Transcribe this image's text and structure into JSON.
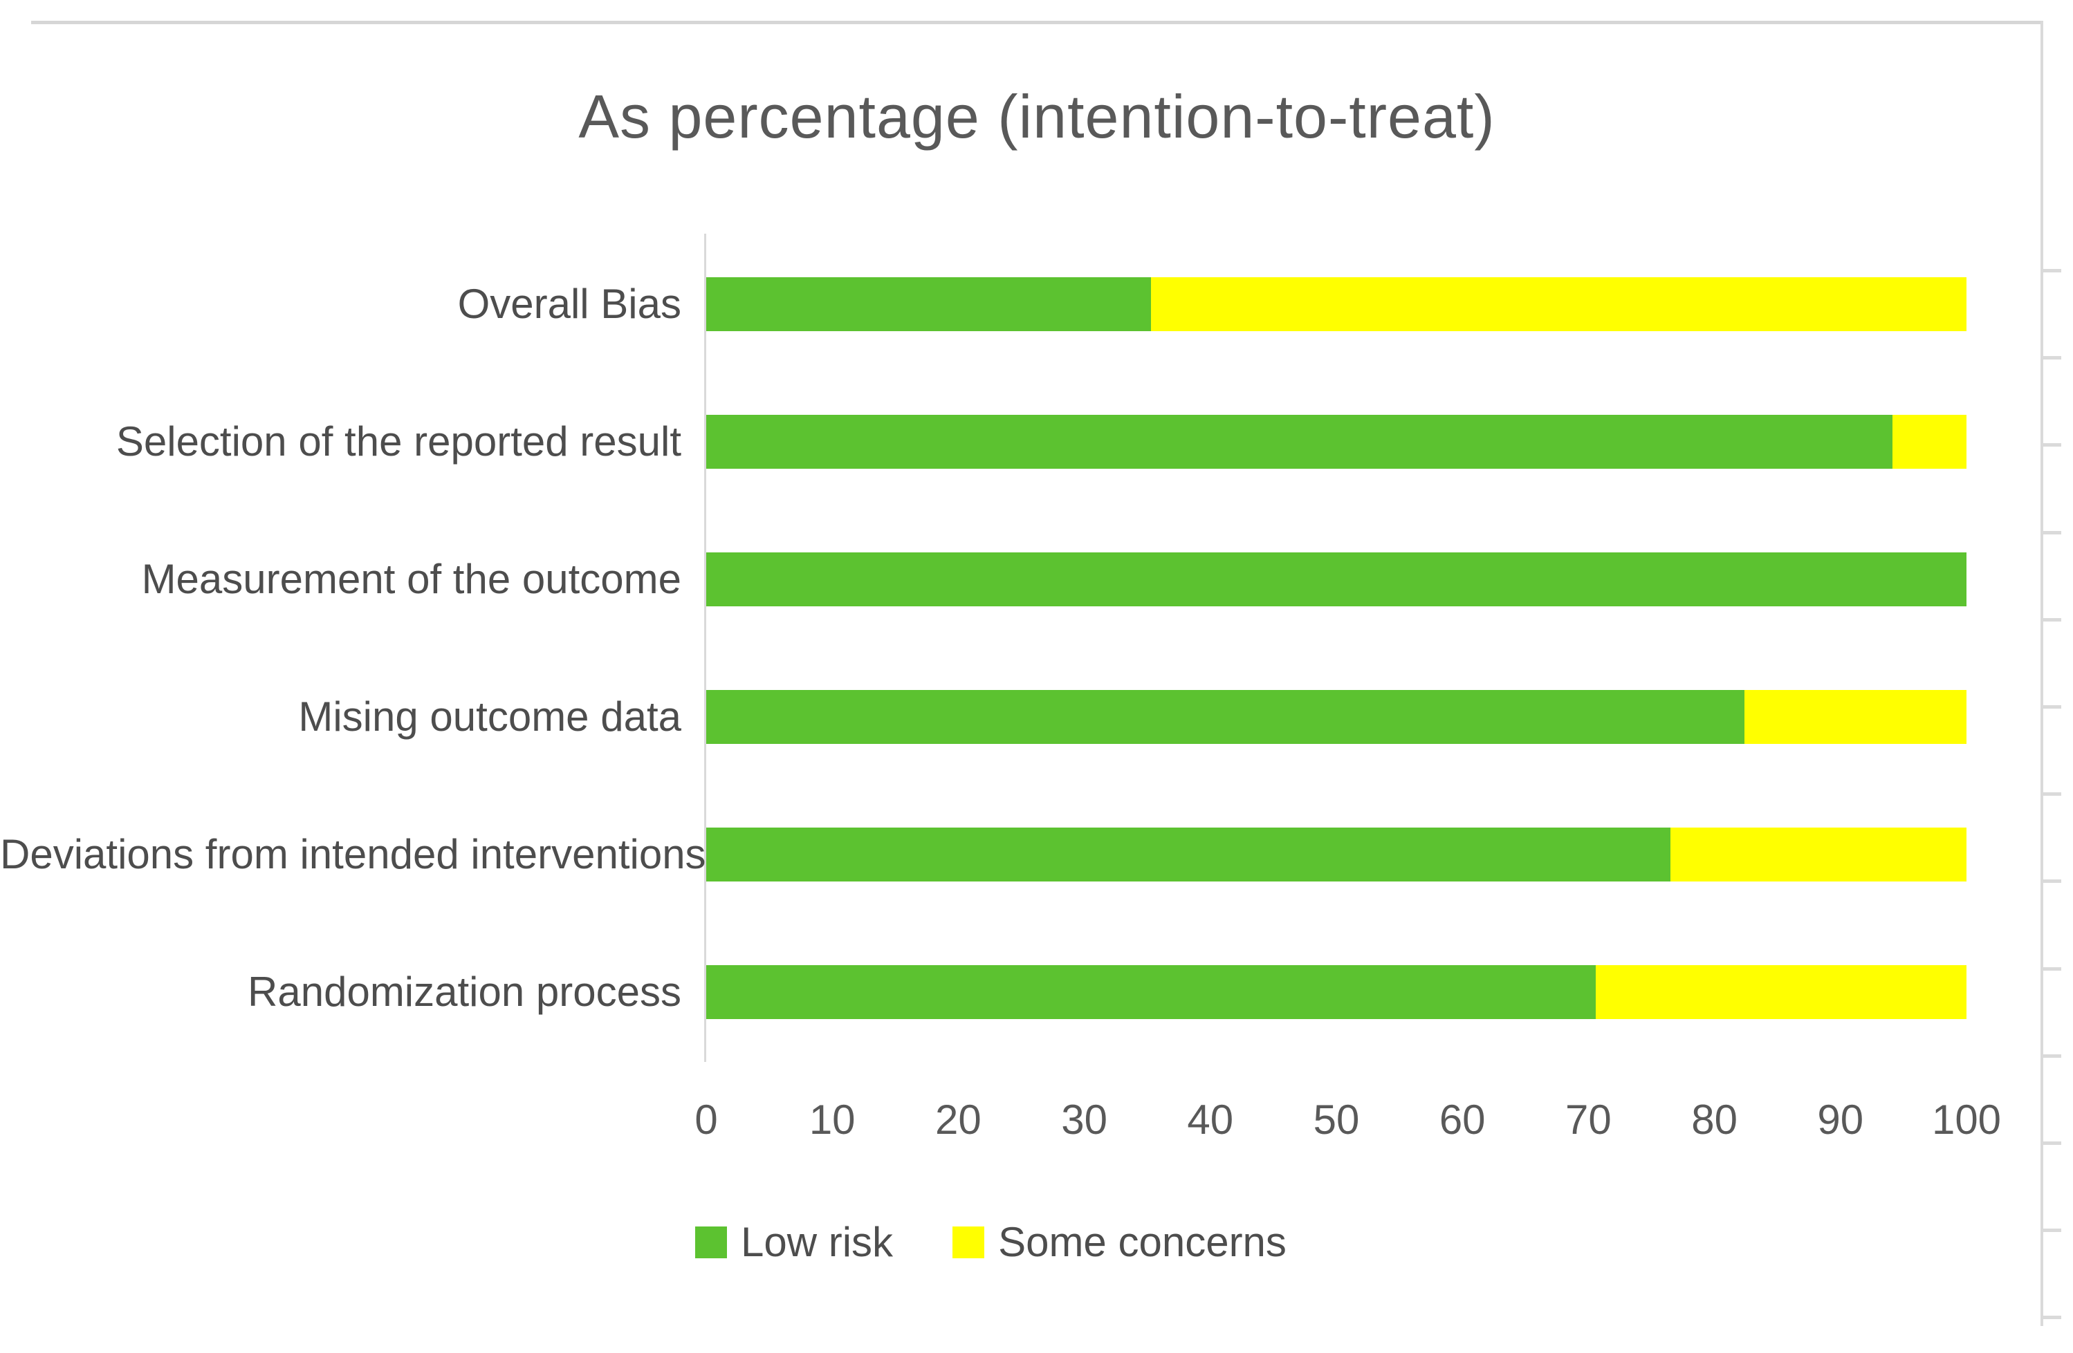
{
  "chart_data": {
    "type": "bar",
    "orientation": "horizontal",
    "stacked": true,
    "title": "As percentage (intention-to-treat)",
    "categories": [
      "Overall Bias",
      "Selection of the reported result",
      "Measurement of the outcome",
      "Mising outcome data",
      "Deviations from intended interventions",
      "Randomization process"
    ],
    "series": [
      {
        "name": "Low risk",
        "color": "#5cc230",
        "values": [
          35.3,
          94.1,
          100,
          82.4,
          76.5,
          70.6
        ]
      },
      {
        "name": "Some concerns",
        "color": "#ffff00",
        "values": [
          64.7,
          5.9,
          0,
          17.6,
          23.5,
          29.4
        ]
      }
    ],
    "x_axis": {
      "min": 0,
      "max": 100,
      "step": 10,
      "tick_labels": [
        "0",
        "10",
        "20",
        "30",
        "40",
        "50",
        "60",
        "70",
        "80",
        "90",
        "100"
      ]
    },
    "legend": {
      "position": "bottom",
      "entries": [
        {
          "label": "Low risk",
          "color": "#5cc230"
        },
        {
          "label": "Some concerns",
          "color": "#ffff00"
        }
      ]
    },
    "grid": false,
    "text_color": "#595959",
    "axis_line_color": "#d9d9d9"
  }
}
